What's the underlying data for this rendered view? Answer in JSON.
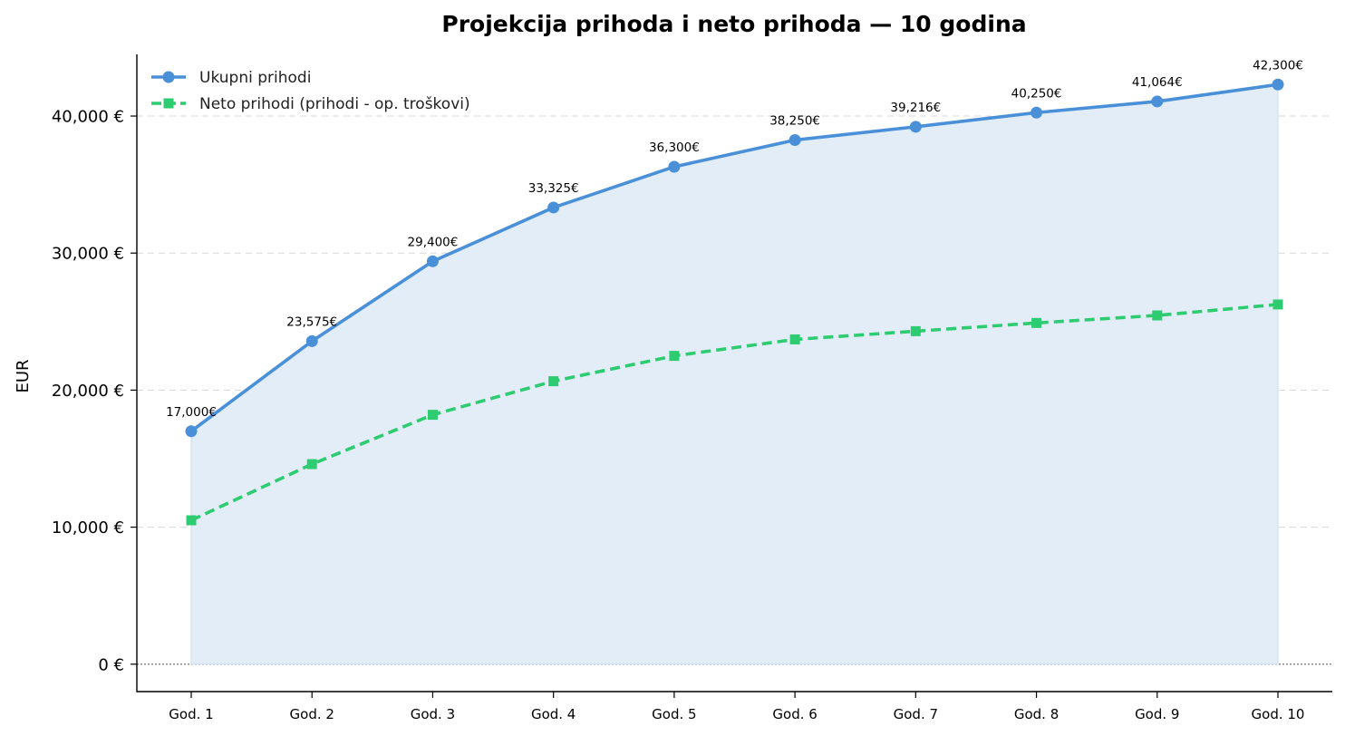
{
  "chart_data": {
    "type": "line",
    "title": "Projekcija prihoda i neto prihoda — 10 godina",
    "ylabel": "EUR",
    "xlabel": "",
    "categories": [
      "God. 1",
      "God. 2",
      "God. 3",
      "God. 4",
      "God. 5",
      "God. 6",
      "God. 7",
      "God. 8",
      "God. 9",
      "God. 10"
    ],
    "ylim": [
      -2000,
      44500
    ],
    "yticks": [
      0,
      10000,
      20000,
      30000,
      40000
    ],
    "ytick_labels": [
      "0 €",
      "10,000 €",
      "20,000 €",
      "30,000 €",
      "40,000 €"
    ],
    "grid": true,
    "legend_position": "top-left",
    "series": [
      {
        "name": "Ukupni prihodi",
        "values": [
          17000,
          23575,
          29400,
          33325,
          36300,
          38250,
          39216,
          40250,
          41064,
          42300
        ],
        "data_labels": [
          "17,000€",
          "23,575€",
          "29,400€",
          "33,325€",
          "36,300€",
          "38,250€",
          "39,216€",
          "40,250€",
          "41,064€",
          "42,300€"
        ],
        "color": "#4a90d9",
        "fill_color": "#e2edf8",
        "line_style": "solid",
        "marker": "circle"
      },
      {
        "name": "Neto prihodi (prihodi - op. troškovi)",
        "values": [
          10500,
          14600,
          18200,
          20650,
          22500,
          23700,
          24300,
          24900,
          25450,
          26250
        ],
        "color": "#2ecc71",
        "line_style": "dashed",
        "marker": "square"
      }
    ]
  }
}
